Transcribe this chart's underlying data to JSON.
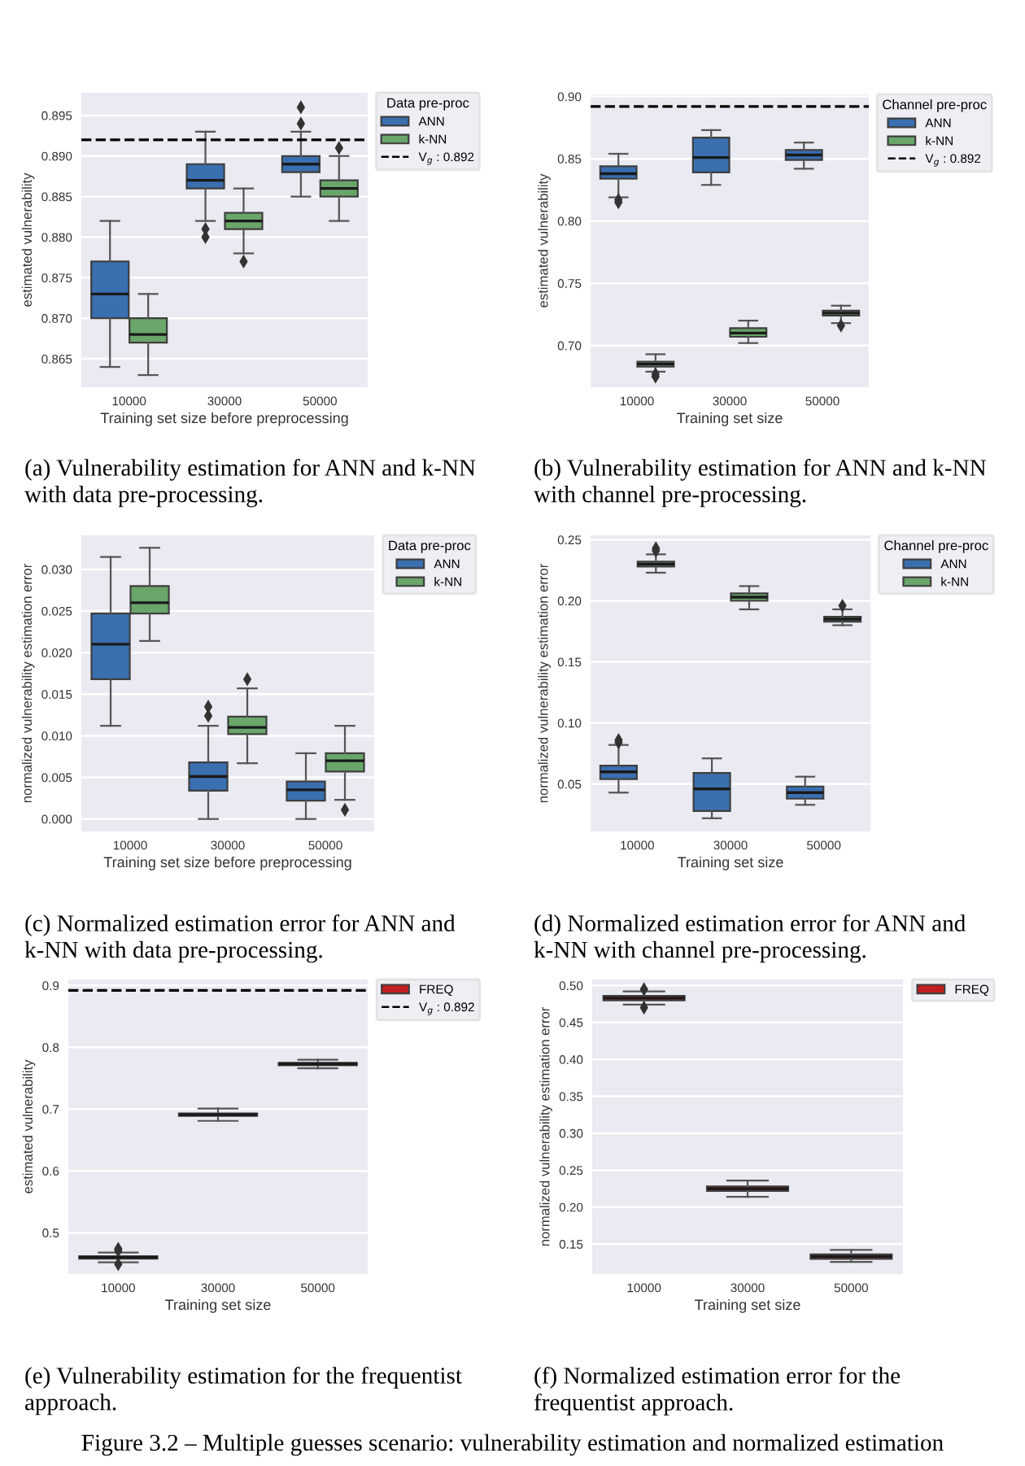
{
  "chart_data": [
    {
      "type": "box",
      "categories": [
        "10000",
        "30000",
        "50000"
      ],
      "xlabel": "Training set size before preprocessing",
      "ylabel": "estimated vulnerability",
      "legend_title": "Data pre-proc",
      "legend": "top right",
      "grid": "y",
      "ylim": [
        0.8615,
        0.8978
      ],
      "yticks": [
        0.865,
        {
          "value": 0.87,
          "label": "0.870"
        },
        0.875,
        {
          "value": 0.88,
          "label": "0.880"
        },
        0.885,
        {
          "value": 0.89,
          "label": "0.890"
        },
        0.895
      ],
      "series": [
        {
          "name": "ANN",
          "color": "#3a6fb0",
          "boxes": [
            {
              "low": 0.864,
              "q1": 0.87,
              "median": 0.873,
              "q3": 0.877,
              "high": 0.882
            },
            {
              "low": 0.882,
              "q1": 0.886,
              "median": 0.887,
              "q3": 0.889,
              "high": 0.893,
              "outliers": [
                0.88,
                0.881
              ]
            },
            {
              "low": 0.885,
              "q1": 0.888,
              "median": 0.889,
              "q3": 0.89,
              "high": 0.893,
              "outliers": [
                0.894,
                0.896
              ]
            }
          ]
        },
        {
          "name": "k-NN",
          "color": "#6aa66a",
          "boxes": [
            {
              "low": 0.863,
              "q1": 0.867,
              "median": 0.868,
              "q3": 0.87,
              "high": 0.873
            },
            {
              "low": 0.878,
              "q1": 0.881,
              "median": 0.882,
              "q3": 0.883,
              "high": 0.886,
              "outliers": [
                0.877
              ]
            },
            {
              "low": 0.882,
              "q1": 0.885,
              "median": 0.886,
              "q3": 0.887,
              "high": 0.89,
              "outliers": [
                0.891
              ]
            }
          ]
        }
      ],
      "ref_lines": [
        {
          "axis": "y",
          "value": 0.892,
          "label": "V$_{g}$ : 0.892",
          "color": "#000000",
          "line_style": "dashed"
        }
      ],
      "annotations": [
        "(a) Vulnerability estimation for ANN and k-NN with data pre-processing."
      ]
    },
    {
      "type": "box",
      "categories": [
        "10000",
        "30000",
        "50000"
      ],
      "xlabel": "Training set size",
      "ylabel": "estimated vulnerability",
      "legend_title": "Channel pre-proc",
      "legend": "top right",
      "grid": "y",
      "ylim": [
        0.6665,
        0.9017
      ],
      "yticks": [
        {
          "value": 0.7,
          "label": "0.70"
        },
        {
          "value": 0.75,
          "label": "0.75"
        },
        {
          "value": 0.8,
          "label": "0.80"
        },
        {
          "value": 0.85,
          "label": "0.85"
        },
        {
          "value": 0.9,
          "label": "0.90"
        }
      ],
      "series": [
        {
          "name": "ANN",
          "color": "#3a6fb0",
          "boxes": [
            {
              "low": 0.819,
              "q1": 0.834,
              "median": 0.838,
              "q3": 0.844,
              "high": 0.854,
              "outliers": [
                0.815,
                0.817
              ]
            },
            {
              "low": 0.829,
              "q1": 0.839,
              "median": 0.851,
              "q3": 0.867,
              "high": 0.873
            },
            {
              "low": 0.842,
              "q1": 0.849,
              "median": 0.853,
              "q3": 0.857,
              "high": 0.863
            }
          ]
        },
        {
          "name": "k-NN",
          "color": "#6aa66a",
          "boxes": [
            {
              "low": 0.679,
              "q1": 0.683,
              "median": 0.685,
              "q3": 0.687,
              "high": 0.693,
              "outliers": [
                0.675,
                0.677
              ]
            },
            {
              "low": 0.702,
              "q1": 0.707,
              "median": 0.71,
              "q3": 0.714,
              "high": 0.72
            },
            {
              "low": 0.718,
              "q1": 0.724,
              "median": 0.726,
              "q3": 0.728,
              "high": 0.732,
              "outliers": [
                0.716
              ]
            }
          ]
        }
      ],
      "ref_lines": [
        {
          "axis": "y",
          "value": 0.892,
          "label": "V$_{g}$ : 0.892",
          "color": "#000000",
          "line_style": "dashed"
        }
      ],
      "annotations": [
        "(b) Vulnerability estimation for ANN and k-NN with channel pre-processing."
      ]
    },
    {
      "type": "box",
      "categories": [
        "10000",
        "30000",
        "50000"
      ],
      "xlabel": "Training set size before preprocessing",
      "ylabel": "normalized vulnerability estimation error",
      "legend_title": "Data pre-proc",
      "legend": "top right",
      "grid": "y",
      "ylim": [
        -0.0015,
        0.0341
      ],
      "yticks": [
        {
          "value": 0,
          "label": "0.000"
        },
        {
          "value": 0.005,
          "label": "0.005"
        },
        {
          "value": 0.01,
          "label": "0.010"
        },
        {
          "value": 0.015,
          "label": "0.015"
        },
        {
          "value": 0.02,
          "label": "0.020"
        },
        {
          "value": 0.025,
          "label": "0.025"
        },
        {
          "value": 0.03,
          "label": "0.030"
        }
      ],
      "series": [
        {
          "name": "ANN",
          "color": "#3a6fb0",
          "boxes": [
            {
              "low": 0.0112,
              "q1": 0.0168,
              "median": 0.021,
              "q3": 0.0247,
              "high": 0.0315
            },
            {
              "low": 0,
              "q1": 0.0034,
              "median": 0.0051,
              "q3": 0.0068,
              "high": 0.0112,
              "outliers": [
                0.0124,
                0.0135
              ]
            },
            {
              "low": 0,
              "q1": 0.0022,
              "median": 0.0035,
              "q3": 0.0045,
              "high": 0.0079
            }
          ]
        },
        {
          "name": "k-NN",
          "color": "#6aa66a",
          "boxes": [
            {
              "low": 0.0214,
              "q1": 0.0247,
              "median": 0.026,
              "q3": 0.028,
              "high": 0.0326
            },
            {
              "low": 0.0067,
              "q1": 0.0102,
              "median": 0.011,
              "q3": 0.0123,
              "high": 0.0157,
              "outliers": [
                0.0168
              ]
            },
            {
              "low": 0.0023,
              "q1": 0.0057,
              "median": 0.007,
              "q3": 0.0079,
              "high": 0.0112,
              "outliers": [
                0.0011
              ]
            }
          ]
        }
      ],
      "annotations": [
        "(c) Normalized estimation error for ANN and k-NN with data pre-processing."
      ]
    },
    {
      "type": "box",
      "categories": [
        "10000",
        "30000",
        "50000"
      ],
      "xlabel": "Training set size",
      "ylabel": "normalized vulnerability estimation error",
      "legend_title": "Channel pre-proc",
      "legend": "top right",
      "grid": "y",
      "ylim": [
        0.0112,
        0.2536
      ],
      "yticks": [
        0.05,
        {
          "value": 0.1,
          "label": "0.10"
        },
        0.15,
        {
          "value": 0.2,
          "label": "0.20"
        },
        0.25
      ],
      "series": [
        {
          "name": "ANN",
          "color": "#3a6fb0",
          "boxes": [
            {
              "low": 0.043,
              "q1": 0.054,
              "median": 0.06,
              "q3": 0.065,
              "high": 0.082,
              "outliers": [
                0.084,
                0.086
              ]
            },
            {
              "low": 0.022,
              "q1": 0.028,
              "median": 0.046,
              "q3": 0.059,
              "high": 0.071
            },
            {
              "low": 0.033,
              "q1": 0.038,
              "median": 0.043,
              "q3": 0.048,
              "high": 0.056
            }
          ]
        },
        {
          "name": "k-NN",
          "color": "#6aa66a",
          "boxes": [
            {
              "low": 0.223,
              "q1": 0.228,
              "median": 0.23,
              "q3": 0.232,
              "high": 0.238,
              "outliers": [
                0.241,
                0.243
              ]
            },
            {
              "low": 0.193,
              "q1": 0.2,
              "median": 0.203,
              "q3": 0.206,
              "high": 0.212
            },
            {
              "low": 0.18,
              "q1": 0.183,
              "median": 0.185,
              "q3": 0.187,
              "high": 0.193,
              "outliers": [
                0.196
              ]
            }
          ]
        }
      ],
      "annotations": [
        "(d) Normalized estimation error for ANN and k-NN with channel pre-processing."
      ]
    },
    {
      "type": "box",
      "categories": [
        "10000",
        "30000",
        "50000"
      ],
      "xlabel": "Training set size",
      "ylabel": "estimated vulnerability",
      "legend": "top right",
      "grid": "y",
      "ylim": [
        0.4332,
        0.9097
      ],
      "yticks": [
        0.5,
        0.6,
        0.7,
        0.8,
        0.9
      ],
      "series": [
        {
          "name": "FREQ",
          "color": "#c41e1e",
          "boxes": [
            {
              "low": 0.452,
              "q1": 0.458,
              "median": 0.46,
              "q3": 0.462,
              "high": 0.468,
              "outliers": [
                0.449,
                0.471,
                0.474
              ]
            },
            {
              "low": 0.681,
              "q1": 0.689,
              "median": 0.691,
              "q3": 0.693,
              "high": 0.701
            },
            {
              "low": 0.766,
              "q1": 0.771,
              "median": 0.773,
              "q3": 0.775,
              "high": 0.78
            }
          ]
        }
      ],
      "ref_lines": [
        {
          "axis": "y",
          "value": 0.892,
          "label": "V$_{g}$ : 0.892",
          "color": "#000000",
          "line_style": "dashed"
        }
      ],
      "annotations": [
        "(e) Vulnerability estimation for the frequentist approach."
      ]
    },
    {
      "type": "box",
      "categories": [
        "10000",
        "30000",
        "50000"
      ],
      "xlabel": "Training set size",
      "ylabel": "normalized vulnerability estimation error",
      "legend": "top right",
      "grid": "y",
      "ylim": [
        0.1095,
        0.5081
      ],
      "yticks": [
        0.15,
        {
          "value": 0.2,
          "label": "0.20"
        },
        0.25,
        {
          "value": 0.3,
          "label": "0.30"
        },
        0.35,
        {
          "value": 0.4,
          "label": "0.40"
        },
        0.45,
        {
          "value": 0.5,
          "label": "0.50"
        }
      ],
      "series": [
        {
          "name": "FREQ",
          "color": "#c41e1e",
          "boxes": [
            {
              "low": 0.474,
              "q1": 0.48,
              "median": 0.483,
              "q3": 0.486,
              "high": 0.492,
              "outliers": [
                0.47,
                0.495
              ]
            },
            {
              "low": 0.214,
              "q1": 0.222,
              "median": 0.225,
              "q3": 0.228,
              "high": 0.236
            },
            {
              "low": 0.126,
              "q1": 0.13,
              "median": 0.133,
              "q3": 0.136,
              "high": 0.142
            }
          ]
        }
      ],
      "annotations": [
        "(f) Normalized estimation error for the frequentist approach.",
        "Figure 3.2 – Multiple guesses scenario: vulnerability estimation and normalized estimation"
      ]
    }
  ]
}
